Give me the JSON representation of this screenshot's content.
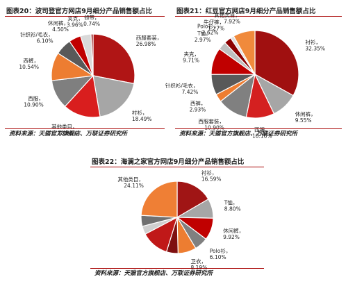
{
  "panels": [
    {
      "title": "图表20：波司登官方网店9月细分产品销售额占比",
      "source": "资料来源：天猫官方旗舰店、万联证券研究所"
    },
    {
      "title": "图表21：红豆官方网店9月细分产品销售额占比",
      "source": "资料来源：天猫官方旗舰店、万联证券研究所"
    },
    {
      "title": "图表22：海澜之家官方网店9月细分产品销售额占比",
      "source": "资料来源：天猫官方旗舰店、万联证券研究所"
    }
  ],
  "chart_data": [
    {
      "type": "pie",
      "title": "图表20：波司登官方网店9月细分产品销售额占比",
      "slices": [
        {
          "label": "西服套装",
          "value": 26.98,
          "color": "#b01515"
        },
        {
          "label": "衬衫",
          "value": 18.49,
          "color": "#a6a6a6"
        },
        {
          "label": "其他类目",
          "value": 13.9,
          "color": "#d91e1e"
        },
        {
          "label": "西服",
          "value": 10.9,
          "color": "#7f7f7f"
        },
        {
          "label": "西裤",
          "value": 10.54,
          "color": "#ed7d31"
        },
        {
          "label": "针织衫/毛衣",
          "value": 6.1,
          "color": "#595959"
        },
        {
          "label": "休闲裤",
          "value": 4.5,
          "color": "#c00000"
        },
        {
          "label": "夹克",
          "value": 3.96,
          "color": "#d9d9d9"
        },
        {
          "label": "领带",
          "value": 0.74,
          "color": "#8b0000"
        }
      ]
    },
    {
      "type": "pie",
      "title": "图表21：红豆官方网店9月细分产品销售额占比",
      "slices": [
        {
          "label": "衬衫",
          "value": 32.35,
          "color": "#a01010"
        },
        {
          "label": "休闲裤",
          "value": 9.55,
          "color": "#a6a6a6"
        },
        {
          "label": "西服",
          "value": 10.16,
          "color": "#d42020"
        },
        {
          "label": "西服套装",
          "value": 10.9,
          "color": "#808080"
        },
        {
          "label": "西裤",
          "value": 2.93,
          "color": "#ed7d31"
        },
        {
          "label": "针织衫/毛衣",
          "value": 7.42,
          "color": "#595959"
        },
        {
          "label": "夹克",
          "value": 9.71,
          "color": "#c00000"
        },
        {
          "label": "T恤",
          "value": 2.97,
          "color": "#bfbfbf"
        },
        {
          "label": "Polo衫",
          "value": 2.62,
          "color": "#8b0000"
        },
        {
          "label": "牛仔裤",
          "value": 1.27,
          "color": "#e0e0e0"
        },
        {
          "label": "其他类目",
          "value": 7.92,
          "color": "#f08a3c"
        }
      ]
    },
    {
      "type": "pie",
      "title": "图表22：海澜之家官方网店9月细分产品销售额占比",
      "slices": [
        {
          "label": "衬衫",
          "value": 16.59,
          "color": "#a01515"
        },
        {
          "label": "T恤",
          "value": 8.8,
          "color": "#a6a6a6"
        },
        {
          "label": "休闲裤",
          "value": 9.92,
          "color": "#c00000"
        },
        {
          "label": "Polo衫",
          "value": 6.1,
          "color": "#808080"
        },
        {
          "label": "卫衣",
          "value": 8.19,
          "color": "#ed7d31"
        },
        {
          "label": "",
          "value": 5.2,
          "color": "#7f1010"
        },
        {
          "label": "",
          "value": 12.5,
          "color": "#c01818"
        },
        {
          "label": "",
          "value": 3.7,
          "color": "#cfcfcf"
        },
        {
          "label": "",
          "value": 4.9,
          "color": "#707070"
        },
        {
          "label": "其他类目",
          "value": 24.11,
          "color": "#ef7f35"
        }
      ]
    }
  ]
}
